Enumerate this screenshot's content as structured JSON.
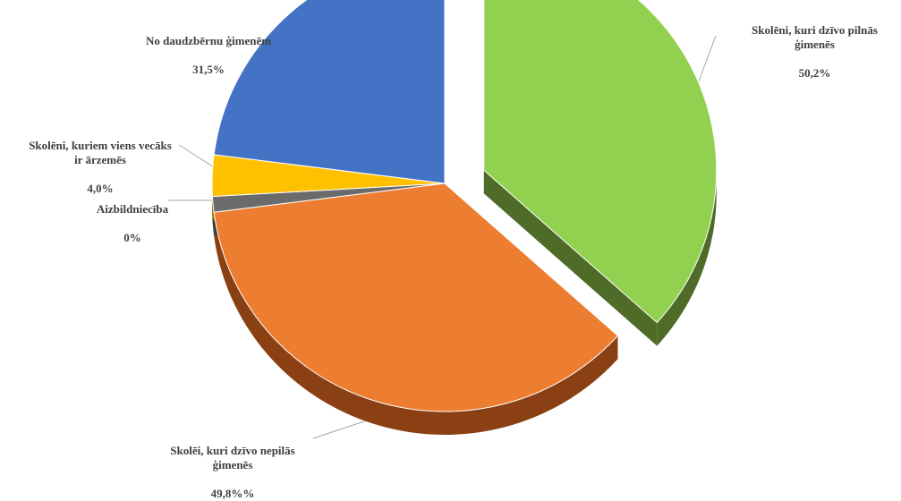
{
  "chart_data": {
    "type": "pie",
    "style": "3d-exploded",
    "slices": [
      {
        "label": "Skolēni, kuri dzīvo pilnās ģimenēs",
        "value_text": "50,2%",
        "value": 50.2,
        "color": "#92d050",
        "side_color": "#4f6b28",
        "exploded": true
      },
      {
        "label": "Skolēi, kuri dzīvo nepilās ģimenēs",
        "value_text": "49,8%%",
        "value": 49.8,
        "color": "#ed7d31",
        "side_color": "#8a4013",
        "exploded": false
      },
      {
        "label": "Aizbildniecība",
        "value_text": "0%",
        "value": 0,
        "color": "#6b6b6b",
        "side_color": "#3d3d3d",
        "exploded": false
      },
      {
        "label": "Skolēni, kuriem viens vecāks ir ārzemēs",
        "value_text": "4,0%",
        "value": 4.0,
        "color": "#ffc000",
        "side_color": "#9c7400",
        "exploded": false
      },
      {
        "label": "No daudzbērnu ģimenēm",
        "value_text": "31,5%",
        "value": 31.5,
        "color": "#4472c4",
        "side_color": "#1f3864",
        "exploded": false
      }
    ],
    "labels": {
      "pilnas": "Skolēni, kuri dzīvo pilnās\nģimenēs",
      "nepilas": "Skolēi, kuri dzīvo nepilās\nģimenēs",
      "aizb": "Aizbildniecība",
      "arzemes": "Skolēni, kuriem viens vecāks\nir ārzemēs",
      "daudzb": "No daudzbērnu ģimenēm"
    }
  }
}
